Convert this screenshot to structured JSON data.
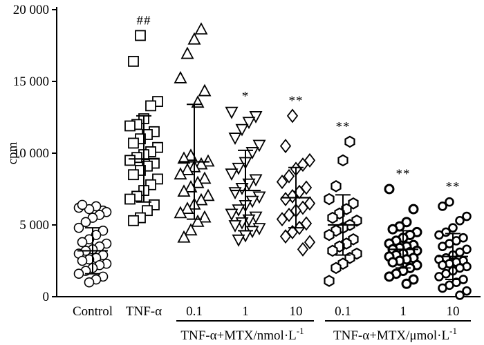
{
  "chart_data": {
    "type": "scatter",
    "ylabel": "cpm",
    "ylim": [
      0,
      20000
    ],
    "yticks": [
      {
        "value": 0,
        "label": "0"
      },
      {
        "value": 5000,
        "label": "5 000"
      },
      {
        "value": 10000,
        "label": "10 000"
      },
      {
        "value": 15000,
        "label": "15 000"
      },
      {
        "value": 20000,
        "label": "20 000"
      }
    ],
    "group_labels": [
      {
        "text": "TNF-α+MTX/nmol·L",
        "sup": "-1",
        "from": 2,
        "to": 4
      },
      {
        "text": "TNF-α+MTX/μmol·L",
        "sup": "-1",
        "from": 5,
        "to": 7
      }
    ],
    "categories": [
      {
        "label": "Control",
        "marker": "circle",
        "significance": "",
        "mean": 3200,
        "sd": 1600,
        "points": [
          6200,
          6000,
          6300,
          6100,
          6400,
          5900,
          5700,
          5500,
          5200,
          4800,
          4600,
          4300,
          4000,
          3800,
          3700,
          3500,
          3300,
          3200,
          3000,
          2900,
          2700,
          2600,
          2500,
          2300,
          2200,
          2000,
          1800,
          1600,
          1400,
          1200,
          1000
        ]
      },
      {
        "label": "TNF-α",
        "marker": "square",
        "significance": "##",
        "mean": 9600,
        "sd": 3000,
        "points": [
          18200,
          16400,
          13600,
          13300,
          12400,
          12000,
          11900,
          11500,
          11300,
          11000,
          10700,
          10400,
          10100,
          9900,
          9700,
          9500,
          9300,
          9100,
          8800,
          8500,
          8200,
          7800,
          7400,
          7000,
          6800,
          6400,
          6000,
          5500,
          5300
        ]
      },
      {
        "label": "0.1",
        "marker": "triangle-up",
        "significance": "",
        "mean": 9400,
        "sd": 4000,
        "points": [
          18600,
          17900,
          16900,
          15200,
          14300,
          13500,
          9800,
          9600,
          9400,
          9200,
          9000,
          8800,
          8500,
          8200,
          7900,
          7600,
          7300,
          7000,
          6700,
          6400,
          6100,
          5800,
          5500,
          5200,
          4600,
          4100
        ]
      },
      {
        "label": "1",
        "marker": "triangle-down",
        "significance": "*",
        "mean": 7400,
        "sd": 2800,
        "points": [
          12900,
          12600,
          12200,
          11700,
          11100,
          10600,
          10100,
          9400,
          9000,
          8600,
          8200,
          7900,
          7600,
          7300,
          7000,
          6700,
          6400,
          6100,
          5800,
          5600,
          5400,
          5200,
          5000,
          4800,
          4600,
          4300,
          4000
        ]
      },
      {
        "label": "10",
        "marker": "diamond",
        "significance": "**",
        "mean": 6900,
        "sd": 2100,
        "points": [
          12600,
          10500,
          9500,
          9200,
          8900,
          8400,
          8000,
          7600,
          7300,
          7000,
          6800,
          6500,
          6200,
          6000,
          5700,
          5400,
          5100,
          4800,
          4500,
          4200,
          3800,
          3300
        ]
      },
      {
        "label": "0.1",
        "marker": "hexagon",
        "significance": "**",
        "mean": 5000,
        "sd": 2100,
        "points": [
          10800,
          9500,
          7700,
          6800,
          6500,
          6100,
          5800,
          5500,
          5300,
          5000,
          4800,
          4600,
          4300,
          4000,
          3700,
          3500,
          3200,
          3000,
          2700,
          2300,
          2000,
          1100
        ]
      },
      {
        "label": "1",
        "marker": "circle-bold",
        "significance": "**",
        "mean": 3300,
        "sd": 1300,
        "points": [
          7500,
          6100,
          5200,
          4900,
          4700,
          4500,
          4300,
          4100,
          3900,
          3700,
          3600,
          3500,
          3400,
          3300,
          3200,
          3100,
          3000,
          2900,
          2800,
          2700,
          2600,
          2500,
          2400,
          2200,
          2000,
          1800,
          1600,
          1400,
          1200,
          900
        ]
      },
      {
        "label": "10",
        "marker": "circle-cross",
        "significance": "**",
        "mean": 2800,
        "sd": 1600,
        "points": [
          6600,
          6300,
          5600,
          5300,
          4800,
          4500,
          4300,
          4100,
          3900,
          3700,
          3500,
          3300,
          3100,
          2900,
          2700,
          2600,
          2500,
          2400,
          2300,
          2200,
          2100,
          2000,
          1800,
          1600,
          1400,
          1200,
          1000,
          800,
          600,
          400,
          100
        ]
      }
    ]
  }
}
